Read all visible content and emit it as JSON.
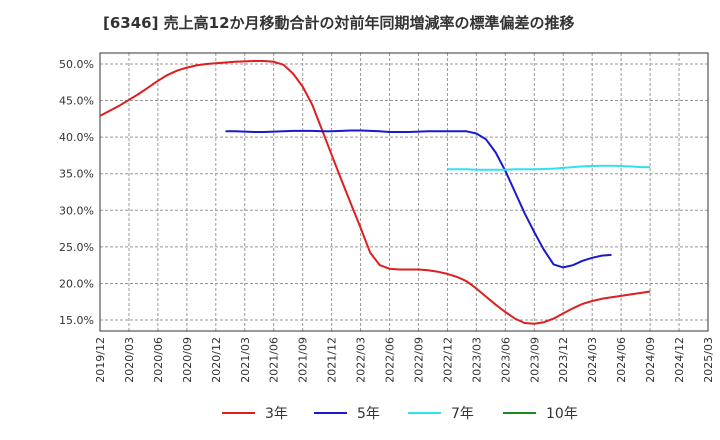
{
  "chart_data": {
    "type": "line",
    "title": "[6346]  売上高12か月移動合計の対前年同期増減率の標準偏差の推移",
    "xlabel": "",
    "ylabel": "",
    "ylim": [
      13.5,
      51.5
    ],
    "yticks": [
      15,
      20,
      25,
      30,
      35,
      40,
      45,
      50
    ],
    "ytick_labels": [
      "15.0%",
      "20.0%",
      "25.0%",
      "30.0%",
      "35.0%",
      "40.0%",
      "45.0%",
      "50.0%"
    ],
    "xticks": [
      "2019/12",
      "2020/03",
      "2020/06",
      "2020/09",
      "2020/12",
      "2021/03",
      "2021/06",
      "2021/09",
      "2021/12",
      "2022/03",
      "2022/06",
      "2022/09",
      "2022/12",
      "2023/03",
      "2023/06",
      "2023/09",
      "2023/12",
      "2024/03",
      "2024/06",
      "2024/09",
      "2024/12",
      "2025/03"
    ],
    "legend_position": "bottom",
    "grid": true,
    "series": [
      {
        "name": "3年",
        "color": "#dd1f1f",
        "start_index": 0,
        "values": [
          42.9,
          43.6,
          44.3,
          45.1,
          45.9,
          46.8,
          47.7,
          48.5,
          49.1,
          49.5,
          49.8,
          50.0,
          50.1,
          50.2,
          50.3,
          50.35,
          50.4,
          50.4,
          50.3,
          49.9,
          48.7,
          46.9,
          44.4,
          41.0,
          37.6,
          34.2,
          30.9,
          27.6,
          24.2,
          22.5,
          22.0,
          21.9,
          21.9,
          21.9,
          21.8,
          21.6,
          21.3,
          20.9,
          20.3,
          19.3,
          18.2,
          17.1,
          16.1,
          15.2,
          14.6,
          14.5,
          14.7,
          15.2,
          15.9,
          16.6,
          17.2,
          17.6,
          17.9,
          18.1,
          18.3,
          18.5,
          18.7,
          18.9
        ]
      },
      {
        "name": "5年",
        "color": "#1a1acc",
        "start_index": 13,
        "values": [
          40.8,
          40.8,
          40.75,
          40.7,
          40.7,
          40.75,
          40.8,
          40.85,
          40.85,
          40.85,
          40.8,
          40.8,
          40.85,
          40.9,
          40.9,
          40.85,
          40.8,
          40.7,
          40.7,
          40.7,
          40.75,
          40.8,
          40.8,
          40.8,
          40.8,
          40.8,
          40.5,
          39.7,
          37.9,
          35.4,
          32.5,
          29.6,
          27.0,
          24.6,
          22.6,
          22.2,
          22.5,
          23.1,
          23.5,
          23.8,
          23.9
        ]
      },
      {
        "name": "7年",
        "color": "#33e0ee",
        "start_index": 36,
        "values": [
          35.6,
          35.6,
          35.6,
          35.55,
          35.55,
          35.55,
          35.55,
          35.6,
          35.6,
          35.6,
          35.65,
          35.7,
          35.8,
          35.9,
          36.0,
          36.05,
          36.1,
          36.1,
          36.05,
          36.0,
          35.9,
          35.9
        ]
      },
      {
        "name": "10年",
        "color": "#1e8a1e",
        "start_index": 0,
        "values": []
      }
    ]
  }
}
